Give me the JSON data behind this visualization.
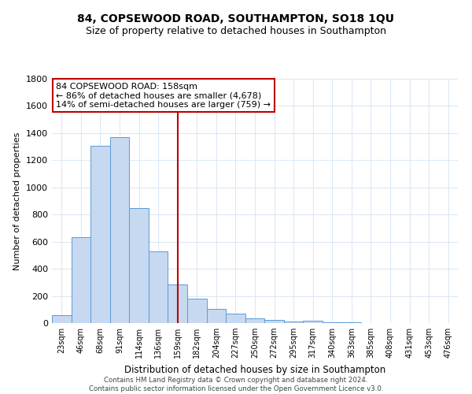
{
  "title": "84, COPSEWOOD ROAD, SOUTHAMPTON, SO18 1QU",
  "subtitle": "Size of property relative to detached houses in Southampton",
  "xlabel": "Distribution of detached houses by size in Southampton",
  "ylabel": "Number of detached properties",
  "categories": [
    "23sqm",
    "46sqm",
    "68sqm",
    "91sqm",
    "114sqm",
    "136sqm",
    "159sqm",
    "182sqm",
    "204sqm",
    "227sqm",
    "250sqm",
    "272sqm",
    "295sqm",
    "317sqm",
    "340sqm",
    "363sqm",
    "385sqm",
    "408sqm",
    "431sqm",
    "453sqm",
    "476sqm"
  ],
  "values": [
    60,
    635,
    1305,
    1370,
    850,
    530,
    285,
    180,
    105,
    68,
    35,
    25,
    10,
    15,
    5,
    3,
    2,
    1,
    1,
    1,
    1
  ],
  "bar_color": "#c6d9f0",
  "bar_edge_color": "#5b9bd5",
  "ylim": [
    0,
    1800
  ],
  "yticks": [
    0,
    200,
    400,
    600,
    800,
    1000,
    1200,
    1400,
    1600,
    1800
  ],
  "vline_x_index": 6,
  "vline_color": "#c00000",
  "annotation_line1": "84 COPSEWOOD ROAD: 158sqm",
  "annotation_line2": "← 86% of detached houses are smaller (4,678)",
  "annotation_line3": "14% of semi-detached houses are larger (759) →",
  "annotation_box_facecolor": "#ffffff",
  "annotation_box_edgecolor": "#c00000",
  "footer_line1": "Contains HM Land Registry data © Crown copyright and database right 2024.",
  "footer_line2": "Contains public sector information licensed under the Open Government Licence v3.0.",
  "background_color": "#ffffff",
  "grid_color": "#dce9f5",
  "title_fontsize": 10,
  "subtitle_fontsize": 9
}
